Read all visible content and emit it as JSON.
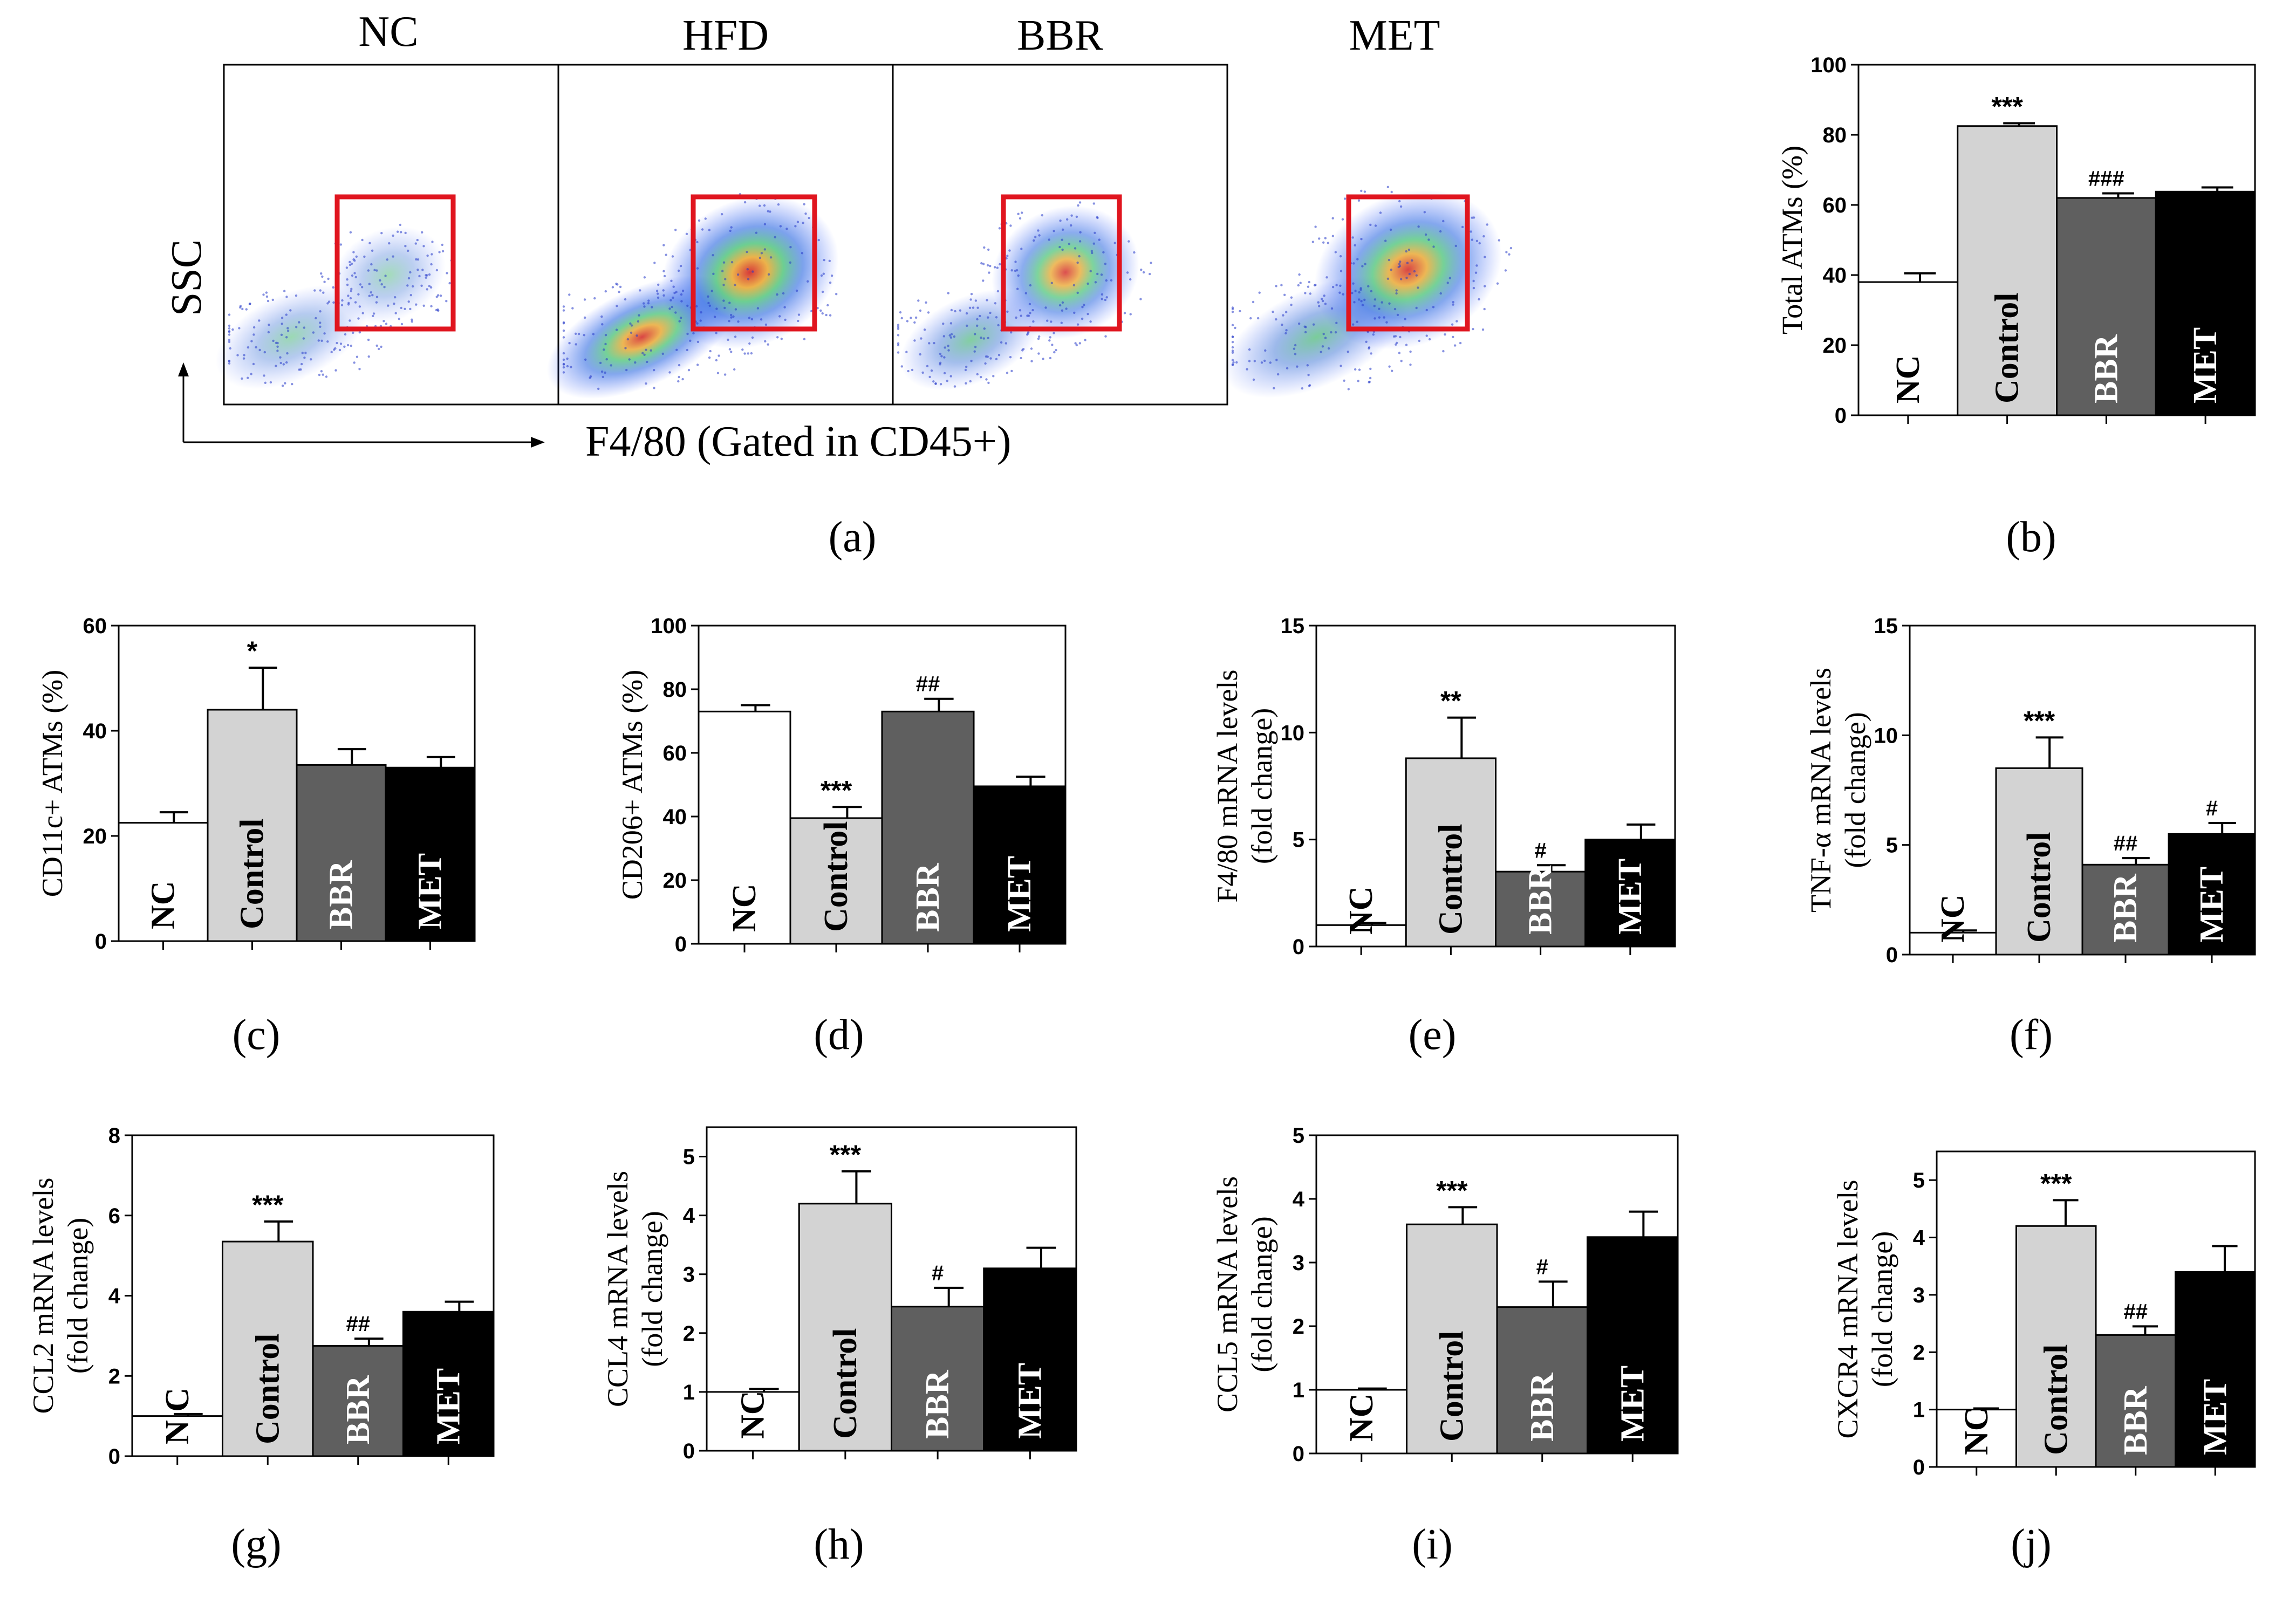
{
  "flow": {
    "groups": [
      "NC",
      "HFD",
      "BBR",
      "MET"
    ],
    "y_axis_label": "SSC",
    "x_axis_label": "F4/80 (Gated in CD45+)",
    "caption": "(a)",
    "gate_color": "#e0151f"
  },
  "colors": {
    "NC": "#ffffff",
    "Control": "#d3d3d3",
    "BBR": "#5f5f5f",
    "MET": "#000000"
  },
  "chart_data": [
    {
      "type": "bar",
      "caption": "(b)",
      "ylabel": [
        "Total ATMs (%)"
      ],
      "ylim": [
        0,
        100
      ],
      "yticks": [
        0,
        20,
        40,
        60,
        80,
        100
      ],
      "categories": [
        "NC",
        "Control",
        "BBR",
        "MET"
      ],
      "values": [
        38,
        82.5,
        62,
        63.8
      ],
      "errors": [
        2.5,
        0.8,
        1.3,
        1.2
      ],
      "annotations": [
        "",
        "***",
        "###",
        ""
      ]
    },
    {
      "type": "bar",
      "caption": "(c)",
      "ylabel": [
        "CD11c+ ATMs (%)"
      ],
      "ylim": [
        0,
        60
      ],
      "yticks": [
        0,
        20,
        40,
        60
      ],
      "categories": [
        "NC",
        "Control",
        "BBR",
        "MET"
      ],
      "values": [
        22.5,
        44,
        33.5,
        33
      ],
      "errors": [
        2,
        8,
        3,
        2
      ],
      "annotations": [
        "",
        "*",
        "",
        ""
      ]
    },
    {
      "type": "bar",
      "caption": "(d)",
      "ylabel": [
        "CD206+ ATMs (%)"
      ],
      "ylim": [
        0,
        100
      ],
      "yticks": [
        0,
        20,
        40,
        60,
        80,
        100
      ],
      "categories": [
        "NC",
        "Control",
        "BBR",
        "MET"
      ],
      "values": [
        73,
        39.5,
        73,
        49.5
      ],
      "errors": [
        2,
        3.5,
        4,
        3
      ],
      "annotations": [
        "",
        "***",
        "##",
        ""
      ]
    },
    {
      "type": "bar",
      "caption": "(e)",
      "ylabel": [
        "F4/80 mRNA levels",
        "(fold change)"
      ],
      "ylim": [
        0,
        15
      ],
      "yticks": [
        0,
        5,
        10,
        15
      ],
      "categories": [
        "NC",
        "Control",
        "BBR",
        "MET"
      ],
      "values": [
        1,
        8.8,
        3.5,
        5
      ],
      "errors": [
        0.1,
        1.9,
        0.3,
        0.7
      ],
      "annotations": [
        "",
        "**",
        "#",
        ""
      ]
    },
    {
      "type": "bar",
      "caption": "(f)",
      "ylabel": [
        "TNF-α mRNA levels",
        "(fold change)"
      ],
      "ylim": [
        0,
        15
      ],
      "yticks": [
        0,
        5,
        10,
        15
      ],
      "categories": [
        "NC",
        "Control",
        "BBR",
        "MET"
      ],
      "values": [
        1,
        8.5,
        4.1,
        5.5
      ],
      "errors": [
        0.1,
        1.4,
        0.3,
        0.5
      ],
      "annotations": [
        "",
        "***",
        "##",
        "#"
      ]
    },
    {
      "type": "bar",
      "caption": "(g)",
      "ylabel": [
        "CCL2 mRNA levels",
        "(fold change)"
      ],
      "ylim": [
        0,
        8
      ],
      "yticks": [
        0,
        2,
        4,
        6,
        8
      ],
      "categories": [
        "NC",
        "Control",
        "BBR",
        "MET"
      ],
      "tick_labels": [
        "N C",
        "Control",
        "BBR",
        "MET"
      ],
      "values": [
        1,
        5.35,
        2.75,
        3.6
      ],
      "errors": [
        0.05,
        0.5,
        0.18,
        0.25
      ],
      "annotations": [
        "",
        "***",
        "##",
        ""
      ]
    },
    {
      "type": "bar",
      "caption": "(h)",
      "ylabel": [
        "CCL4 mRNA levels",
        "(fold change)"
      ],
      "ylim": [
        0,
        5.5
      ],
      "yticks": [
        0,
        1,
        2,
        3,
        4,
        5
      ],
      "categories": [
        "NC",
        "Control",
        "BBR",
        "MET"
      ],
      "values": [
        1,
        4.2,
        2.45,
        3.1
      ],
      "errors": [
        0.05,
        0.55,
        0.32,
        0.35
      ],
      "annotations": [
        "",
        "***",
        "#",
        ""
      ]
    },
    {
      "type": "bar",
      "caption": "(i)",
      "ylabel": [
        "CCL5 mRNA levels",
        "(fold change)"
      ],
      "ylim": [
        0,
        5
      ],
      "yticks": [
        0,
        1,
        2,
        3,
        4,
        5
      ],
      "categories": [
        "NC",
        "Control",
        "BBR",
        "MET"
      ],
      "values": [
        1,
        3.6,
        2.3,
        3.4
      ],
      "errors": [
        0.02,
        0.27,
        0.4,
        0.4
      ],
      "annotations": [
        "",
        "***",
        "#",
        ""
      ]
    },
    {
      "type": "bar",
      "caption": "(j)",
      "ylabel": [
        "CXCR4 mRNA levels",
        "(fold change)"
      ],
      "ylim": [
        0,
        5.5
      ],
      "yticks": [
        0,
        1,
        2,
        3,
        4,
        5
      ],
      "categories": [
        "NC",
        "Control",
        "BBR",
        "MET"
      ],
      "values": [
        1,
        4.2,
        2.3,
        3.4
      ],
      "errors": [
        0.02,
        0.45,
        0.15,
        0.45
      ],
      "annotations": [
        "",
        "***",
        "##",
        ""
      ]
    }
  ]
}
